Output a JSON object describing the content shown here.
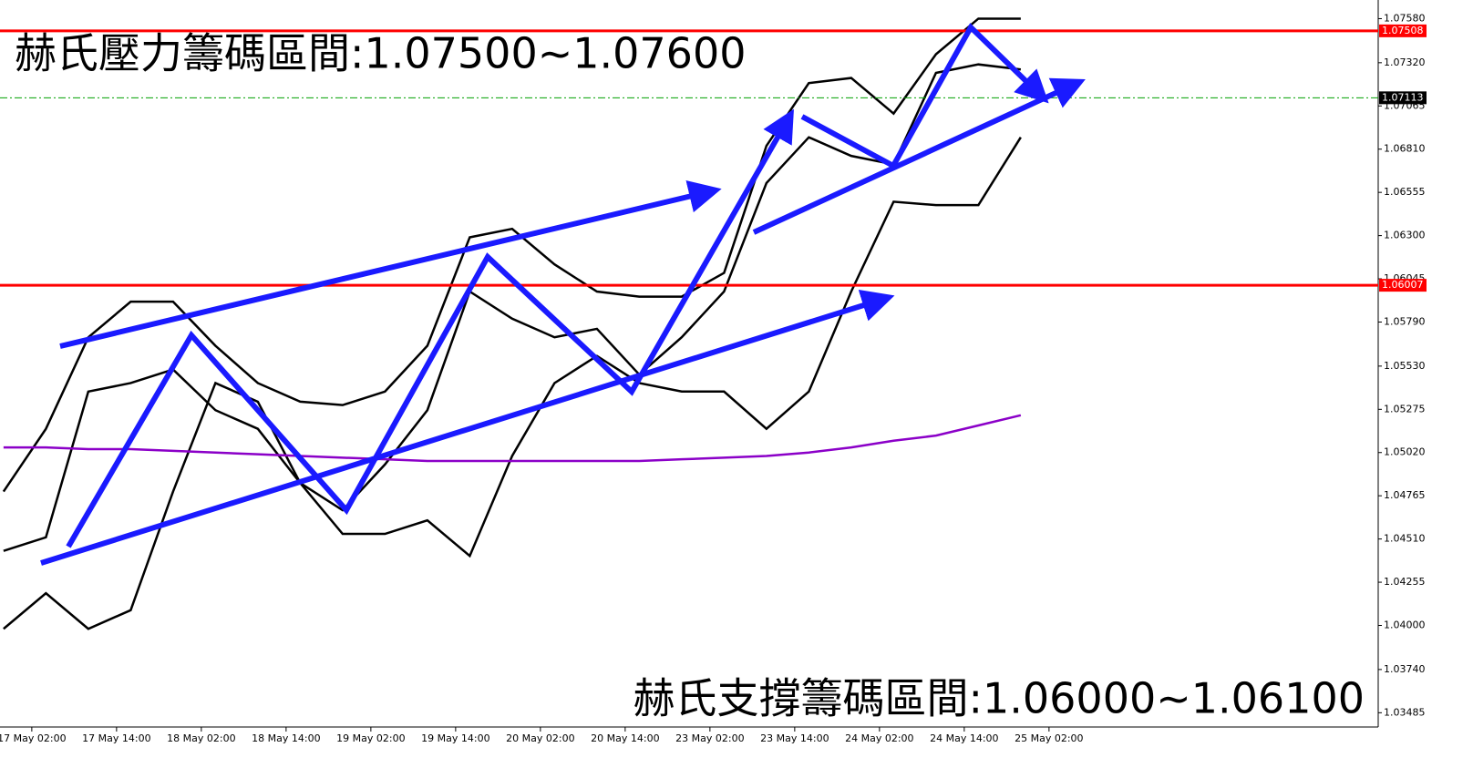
{
  "chart_data": {
    "type": "line",
    "annotations": [
      "赫氏壓力籌碼區間:1.07500~1.07600",
      "赫氏支撐籌碼區間:1.06000~1.06100"
    ],
    "x": [
      0,
      6,
      12,
      18,
      24,
      30,
      36,
      42,
      48,
      54,
      60,
      66,
      72,
      78,
      84,
      90,
      96,
      102,
      108,
      114,
      120,
      126,
      132,
      138,
      144
    ],
    "series": [
      {
        "color": "#000000",
        "values": [
          1.0444,
          1.0452,
          1.0538,
          1.0543,
          1.0551,
          1.0527,
          1.0516,
          1.0484,
          1.0468,
          1.0495,
          1.0527,
          1.0597,
          1.0581,
          1.057,
          1.0575,
          1.0548,
          1.057,
          1.0597,
          1.0661,
          1.0688,
          1.0677,
          1.0672,
          1.0726,
          1.0731,
          1.0728
        ]
      },
      {
        "color": "#000000",
        "values": [
          1.0479,
          1.0516,
          1.057,
          1.0591,
          1.0591,
          1.0565,
          1.0543,
          1.0532,
          1.053,
          1.0538,
          1.0565,
          1.0629,
          1.0634,
          1.0613,
          1.0597,
          1.0594,
          1.0594,
          1.0608,
          1.0683,
          1.072,
          1.0723,
          1.0702,
          1.0737,
          1.0758,
          1.0758
        ]
      },
      {
        "color": "#000000",
        "values": [
          1.0398,
          1.0419,
          1.0398,
          1.0409,
          1.0479,
          1.0543,
          1.0532,
          1.0484,
          1.0454,
          1.0454,
          1.0462,
          1.0441,
          1.05,
          1.0543,
          1.0559,
          1.0543,
          1.0538,
          1.0538,
          1.0516,
          1.0538,
          1.0597,
          1.065,
          1.0648,
          1.0648,
          1.0688
        ]
      },
      {
        "color": "#8b00c8",
        "values": [
          1.0505,
          1.0505,
          1.0504,
          1.0504,
          1.0503,
          1.0502,
          1.0501,
          1.05,
          1.0499,
          1.0498,
          1.0497,
          1.0497,
          1.0497,
          1.0497,
          1.0497,
          1.0497,
          1.0498,
          1.0499,
          1.05,
          1.0502,
          1.0505,
          1.0509,
          1.0512,
          1.0518,
          1.0524
        ]
      }
    ],
    "hlines": [
      {
        "value": 1.07508,
        "color": "#ff0000"
      },
      {
        "value": 1.07113,
        "color": "#000000"
      },
      {
        "value": 1.06007,
        "color": "#ff0000"
      }
    ],
    "xlim": [
      -0.5,
      194.6
    ],
    "xticks": [
      {
        "value": 4,
        "label": "17 May 02:00"
      },
      {
        "value": 16,
        "label": "17 May 14:00"
      },
      {
        "value": 28,
        "label": "18 May 02:00"
      },
      {
        "value": 40,
        "label": "18 May 14:00"
      },
      {
        "value": 52,
        "label": "19 May 02:00"
      },
      {
        "value": 64,
        "label": "19 May 14:00"
      },
      {
        "value": 76,
        "label": "20 May 02:00"
      },
      {
        "value": 88,
        "label": "20 May 14:00"
      },
      {
        "value": 100,
        "label": "23 May 02:00"
      },
      {
        "value": 112,
        "label": "23 May 14:00"
      },
      {
        "value": 124,
        "label": "24 May 02:00"
      },
      {
        "value": 136,
        "label": "24 May 14:00"
      },
      {
        "value": 148,
        "label": "25 May 02:00"
      }
    ],
    "ylim": [
      1.0339,
      1.0769
    ],
    "yticks": [
      {
        "value": 1.0758,
        "label": "1.07580"
      },
      {
        "value": 1.0732,
        "label": "1.07320"
      },
      {
        "value": 1.07065,
        "label": "1.07065"
      },
      {
        "value": 1.0681,
        "label": "1.06810"
      },
      {
        "value": 1.06555,
        "label": "1.06555"
      },
      {
        "value": 1.063,
        "label": "1.06300"
      },
      {
        "value": 1.06045,
        "label": "1.06045"
      },
      {
        "value": 1.0579,
        "label": "1.05790"
      },
      {
        "value": 1.0553,
        "label": "1.05530"
      },
      {
        "value": 1.05275,
        "label": "1.05275"
      },
      {
        "value": 1.0502,
        "label": "1.05020"
      },
      {
        "value": 1.04765,
        "label": "1.04765"
      },
      {
        "value": 1.0451,
        "label": "1.04510"
      },
      {
        "value": 1.04255,
        "label": "1.04255"
      },
      {
        "value": 1.04,
        "label": "1.04000"
      },
      {
        "value": 1.0374,
        "label": "1.03740"
      },
      {
        "value": 1.03485,
        "label": "1.03485"
      }
    ]
  }
}
